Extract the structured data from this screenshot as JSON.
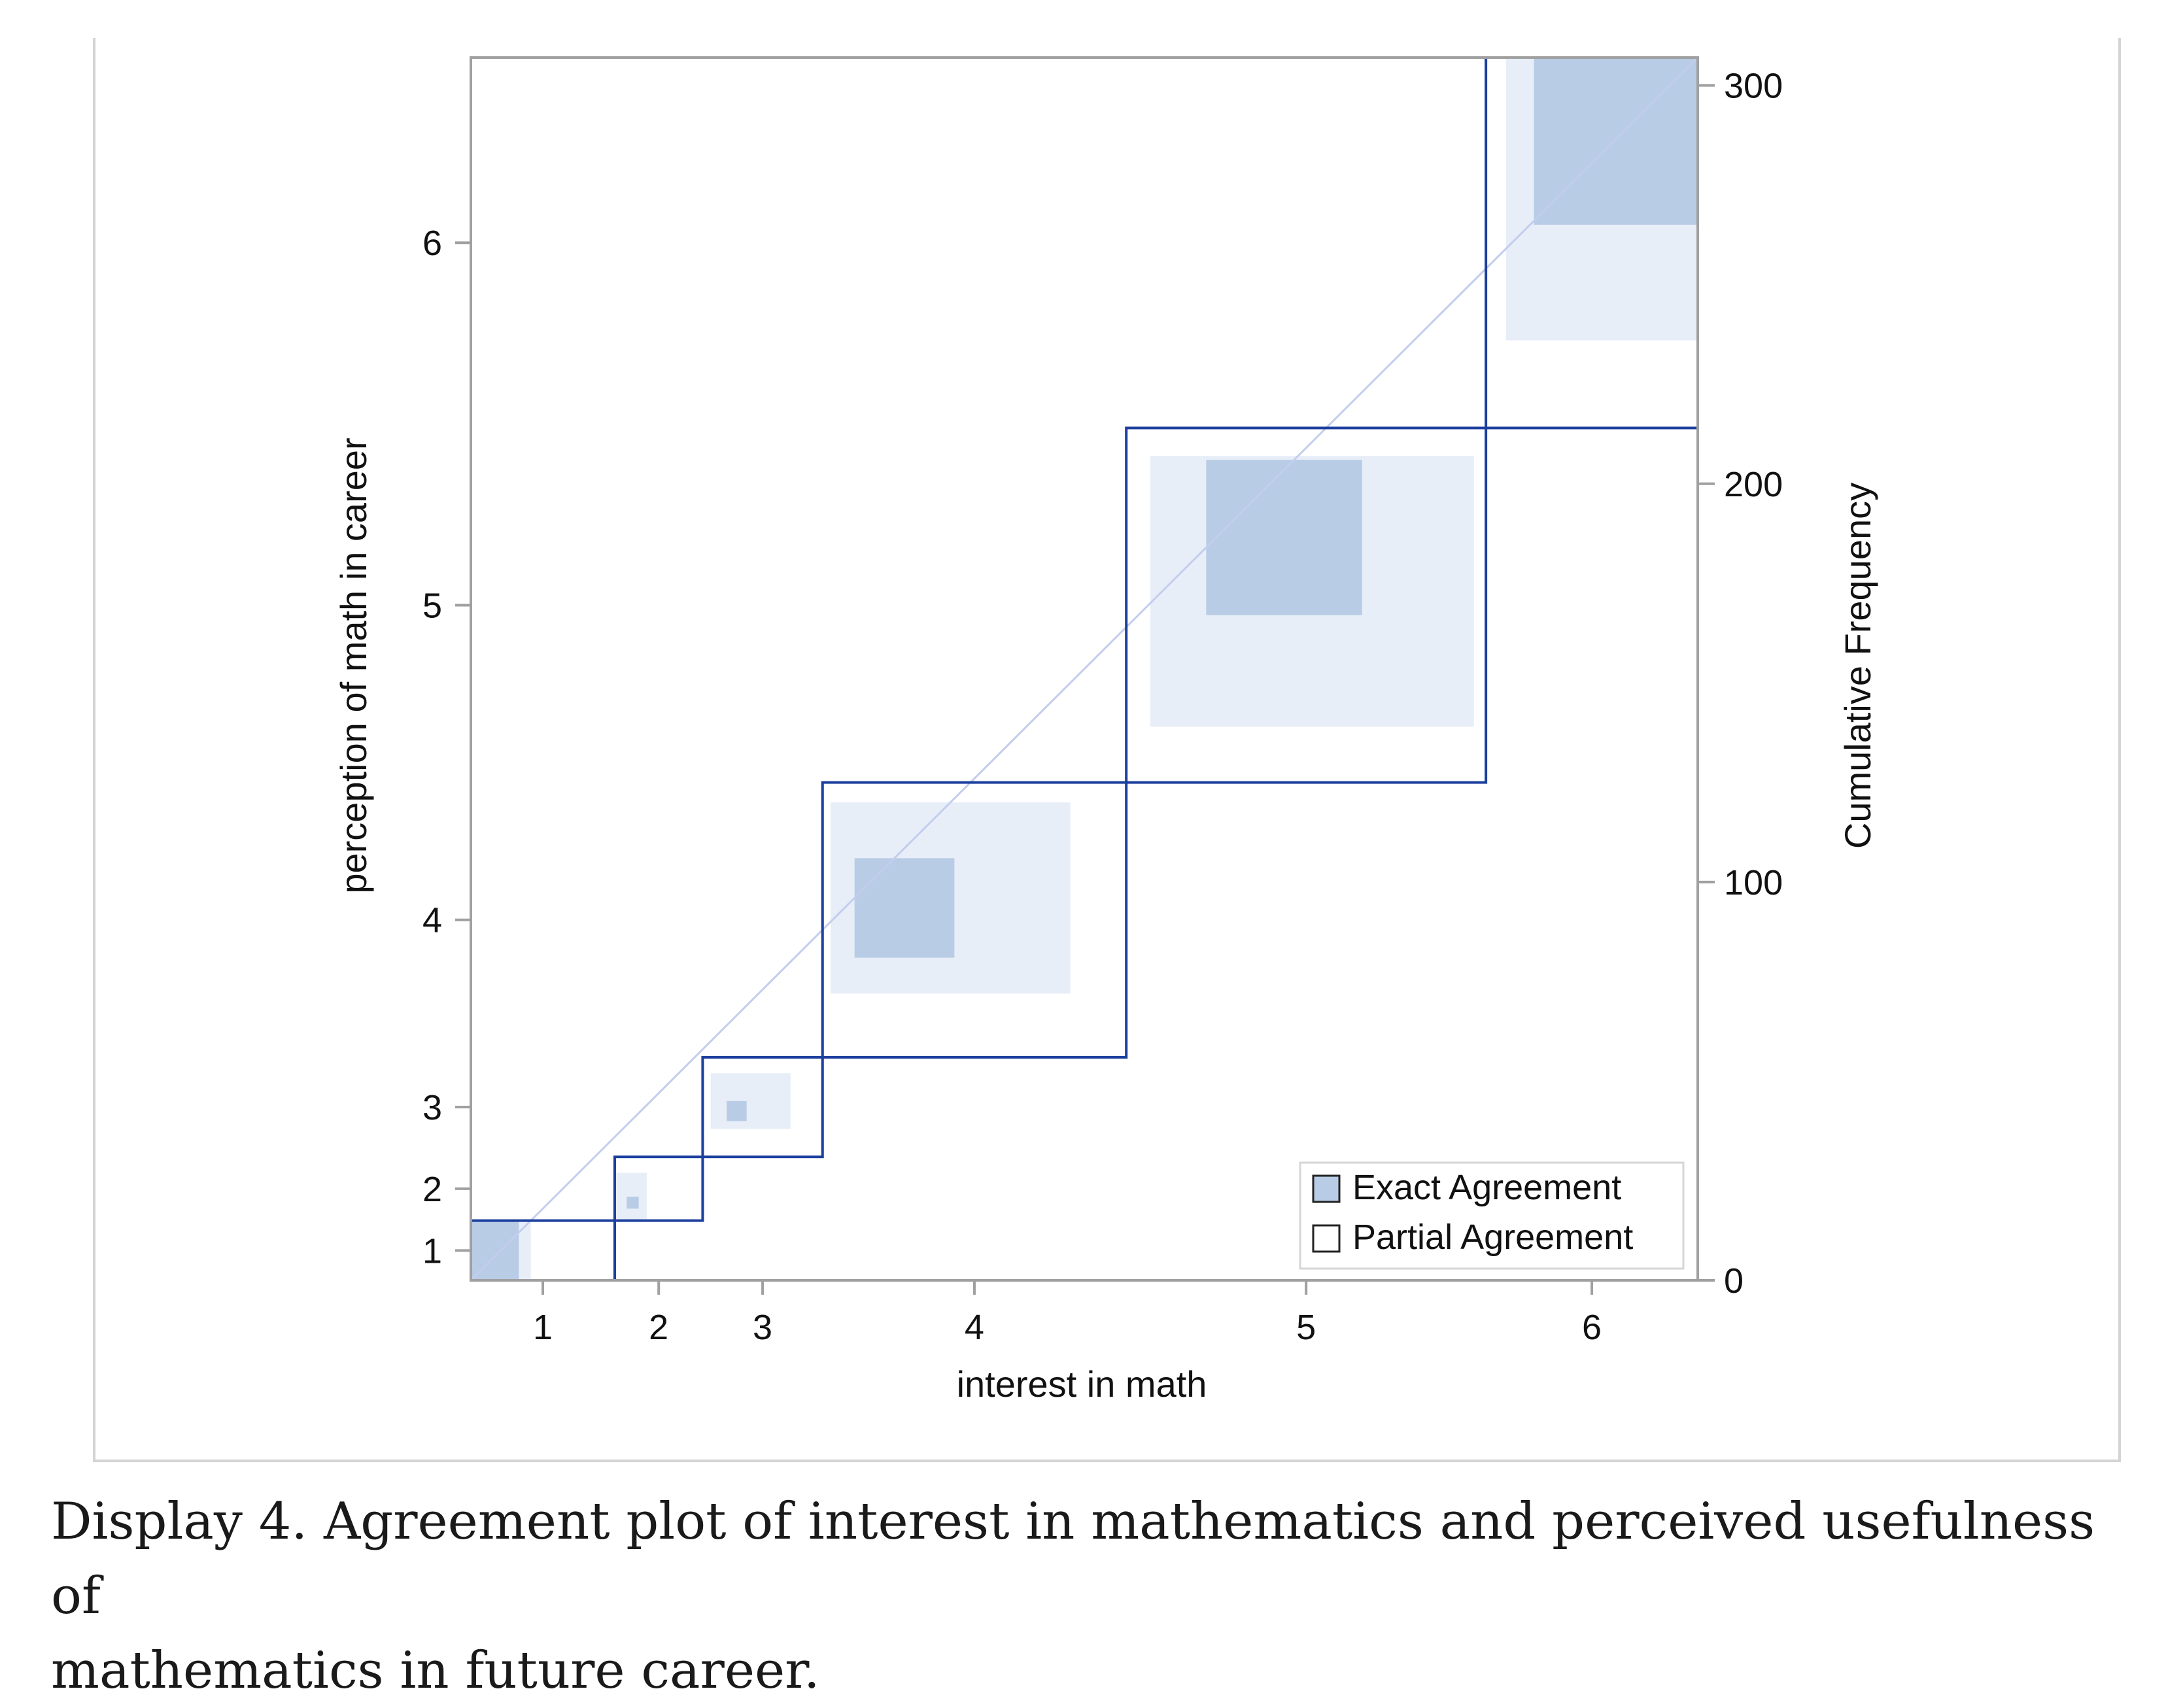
{
  "chart_data": {
    "type": "agreement-plot",
    "xlabel": "interest in math",
    "ylabel": "perception of math in career",
    "y2label": "Cumulative Frequency",
    "x_tick_labels": [
      "1",
      "2",
      "3",
      "4",
      "5",
      "6"
    ],
    "y_tick_labels": [
      "1",
      "2",
      "3",
      "4",
      "5",
      "6"
    ],
    "y2_ticks": [
      0,
      100,
      200,
      300
    ],
    "total": 307,
    "categories": [
      "1",
      "2",
      "3",
      "4",
      "5",
      "6"
    ],
    "col_cum": [
      0,
      36,
      58,
      88,
      164,
      254,
      307
    ],
    "row_cum": [
      0,
      15,
      31,
      56,
      125,
      214,
      307
    ],
    "cells": [
      {
        "category": "1",
        "exact": [
          0,
          12,
          0,
          15
        ],
        "partial": [
          0,
          15,
          0,
          15
        ]
      },
      {
        "category": "2",
        "exact": [
          39,
          42,
          18,
          21
        ],
        "partial": [
          36,
          44,
          15,
          27
        ]
      },
      {
        "category": "3",
        "exact": [
          64,
          69,
          40,
          45
        ],
        "partial": [
          60,
          80,
          38,
          52
        ]
      },
      {
        "category": "4",
        "exact": [
          96,
          121,
          81,
          106
        ],
        "partial": [
          90,
          150,
          72,
          120
        ]
      },
      {
        "category": "5",
        "exact": [
          184,
          223,
          167,
          206
        ],
        "partial": [
          170,
          251,
          139,
          207
        ]
      },
      {
        "category": "6",
        "exact": [
          266,
          307,
          265,
          307
        ],
        "partial": [
          259,
          307,
          236,
          307
        ]
      }
    ],
    "legend": {
      "placement": "bottom-right",
      "items": [
        "Exact Agreement",
        "Partial Agreement"
      ]
    },
    "colors": {
      "exact": "#b8cce6",
      "partial": "#e8eef8",
      "observed_line": "#1c3f9e",
      "diagonal": "#c3cdee",
      "axis": "#a0a0a0"
    }
  },
  "caption": {
    "line1": "Display 4. Agreement plot of interest in mathematics and perceived usefulness of",
    "line2": "mathematics in future career."
  }
}
